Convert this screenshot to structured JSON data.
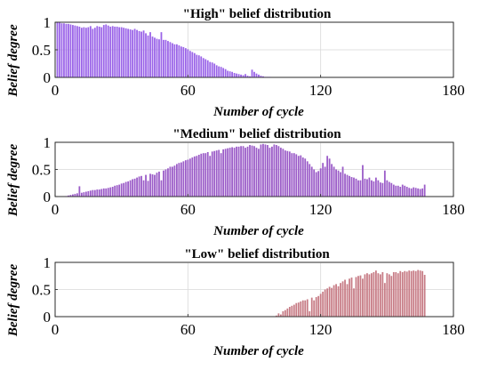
{
  "chart_data": [
    {
      "type": "bar",
      "title": "\"High\" belief distribution",
      "xlabel": "Number of cycle",
      "ylabel": "Belief degree",
      "xlim": [
        0,
        180
      ],
      "ylim": [
        0,
        1
      ],
      "xticks": [
        "0",
        "60",
        "120",
        "180"
      ],
      "yticks": [
        "0",
        "0.5",
        "1"
      ],
      "grid": true,
      "color": "#9a63e8",
      "x": [
        1,
        2,
        3,
        4,
        5,
        6,
        7,
        8,
        9,
        10,
        11,
        12,
        13,
        14,
        15,
        16,
        17,
        18,
        19,
        20,
        21,
        22,
        23,
        24,
        25,
        26,
        27,
        28,
        29,
        30,
        31,
        32,
        33,
        34,
        35,
        36,
        37,
        38,
        39,
        40,
        41,
        42,
        43,
        44,
        45,
        46,
        47,
        48,
        49,
        50,
        51,
        52,
        53,
        54,
        55,
        56,
        57,
        58,
        59,
        60,
        61,
        62,
        63,
        64,
        65,
        66,
        67,
        68,
        69,
        70,
        71,
        72,
        73,
        74,
        75,
        76,
        77,
        78,
        79,
        80,
        81,
        82,
        83,
        84,
        85,
        86,
        87,
        88,
        89,
        90,
        91,
        92,
        93,
        94,
        95,
        96,
        97,
        98,
        99,
        100,
        101,
        102,
        103
      ],
      "values": [
        1.0,
        1.0,
        0.98,
        0.98,
        0.97,
        0.97,
        0.96,
        0.95,
        0.94,
        0.93,
        0.92,
        0.9,
        0.91,
        0.9,
        0.91,
        0.93,
        0.88,
        0.9,
        0.93,
        0.92,
        0.91,
        0.95,
        0.96,
        0.94,
        0.92,
        0.93,
        0.92,
        0.92,
        0.91,
        0.91,
        0.9,
        0.89,
        0.88,
        0.87,
        0.86,
        0.88,
        0.86,
        0.84,
        0.83,
        0.85,
        0.8,
        0.76,
        0.82,
        0.74,
        0.72,
        0.7,
        0.69,
        0.82,
        0.68,
        0.68,
        0.66,
        0.64,
        0.62,
        0.6,
        0.6,
        0.58,
        0.56,
        0.55,
        0.53,
        0.51,
        0.48,
        0.46,
        0.44,
        0.41,
        0.4,
        0.38,
        0.35,
        0.33,
        0.31,
        0.28,
        0.27,
        0.25,
        0.22,
        0.2,
        0.19,
        0.17,
        0.15,
        0.12,
        0.11,
        0.1,
        0.08,
        0.07,
        0.06,
        0.05,
        0.04,
        0.06,
        0.03,
        0.02,
        0.14,
        0.1,
        0.07,
        0.05,
        0.03,
        0.02,
        0.01,
        0.01,
        0.01,
        0.0,
        0.0,
        0.0,
        0.0,
        0.0,
        0.0
      ]
    },
    {
      "type": "bar",
      "title": "\"Medium\" belief distribution",
      "xlabel": "Number of cycle",
      "ylabel": "Belief degree",
      "xlim": [
        0,
        180
      ],
      "ylim": [
        0,
        1
      ],
      "xticks": [
        "0",
        "60",
        "120",
        "180"
      ],
      "yticks": [
        "0",
        "0.5",
        "1"
      ],
      "grid": true,
      "color": "#9b5cc8",
      "x": [
        1,
        2,
        3,
        4,
        5,
        6,
        7,
        8,
        9,
        10,
        11,
        12,
        13,
        14,
        15,
        16,
        17,
        18,
        19,
        20,
        21,
        22,
        23,
        24,
        25,
        26,
        27,
        28,
        29,
        30,
        31,
        32,
        33,
        34,
        35,
        36,
        37,
        38,
        39,
        40,
        41,
        42,
        43,
        44,
        45,
        46,
        47,
        48,
        49,
        50,
        51,
        52,
        53,
        54,
        55,
        56,
        57,
        58,
        59,
        60,
        61,
        62,
        63,
        64,
        65,
        66,
        67,
        68,
        69,
        70,
        71,
        72,
        73,
        74,
        75,
        76,
        77,
        78,
        79,
        80,
        81,
        82,
        83,
        84,
        85,
        86,
        87,
        88,
        89,
        90,
        91,
        92,
        93,
        94,
        95,
        96,
        97,
        98,
        99,
        100,
        101,
        102,
        103,
        104,
        105,
        106,
        107,
        108,
        109,
        110,
        111,
        112,
        113,
        114,
        115,
        116,
        117,
        118,
        119,
        120,
        121,
        122,
        123,
        124,
        125,
        126,
        127,
        128,
        129,
        130,
        131,
        132,
        133,
        134,
        135,
        136,
        137,
        138,
        139,
        140,
        141,
        142,
        143,
        144,
        145,
        146,
        147,
        148,
        149,
        150,
        151,
        152,
        153,
        154,
        155,
        156,
        157,
        158,
        159,
        160,
        161,
        162,
        163,
        164,
        165,
        166,
        167
      ],
      "values": [
        0.0,
        0.0,
        0.0,
        0.0,
        0.01,
        0.02,
        0.03,
        0.04,
        0.05,
        0.06,
        0.19,
        0.07,
        0.08,
        0.09,
        0.1,
        0.11,
        0.12,
        0.12,
        0.13,
        0.13,
        0.14,
        0.15,
        0.15,
        0.16,
        0.17,
        0.18,
        0.2,
        0.21,
        0.22,
        0.24,
        0.25,
        0.27,
        0.28,
        0.3,
        0.32,
        0.33,
        0.35,
        0.37,
        0.38,
        0.3,
        0.4,
        0.29,
        0.42,
        0.41,
        0.4,
        0.44,
        0.46,
        0.3,
        0.48,
        0.5,
        0.52,
        0.55,
        0.55,
        0.57,
        0.6,
        0.62,
        0.63,
        0.65,
        0.67,
        0.68,
        0.7,
        0.72,
        0.74,
        0.75,
        0.77,
        0.79,
        0.8,
        0.8,
        0.82,
        0.75,
        0.83,
        0.84,
        0.85,
        0.86,
        0.8,
        0.87,
        0.88,
        0.89,
        0.9,
        0.91,
        0.9,
        0.92,
        0.92,
        0.93,
        0.93,
        0.9,
        0.92,
        0.95,
        0.94,
        0.93,
        0.9,
        0.88,
        0.96,
        0.97,
        0.96,
        0.95,
        0.9,
        0.92,
        0.96,
        0.95,
        0.93,
        0.9,
        0.88,
        0.85,
        0.84,
        0.83,
        0.8,
        0.8,
        0.78,
        0.75,
        0.76,
        0.72,
        0.7,
        0.65,
        0.6,
        0.55,
        0.5,
        0.45,
        0.47,
        0.52,
        0.62,
        0.55,
        0.75,
        0.7,
        0.6,
        0.55,
        0.5,
        0.48,
        0.45,
        0.55,
        0.42,
        0.4,
        0.38,
        0.36,
        0.35,
        0.33,
        0.3,
        0.3,
        0.58,
        0.33,
        0.32,
        0.35,
        0.3,
        0.28,
        0.35,
        0.3,
        0.26,
        0.25,
        0.48,
        0.3,
        0.27,
        0.25,
        0.22,
        0.2,
        0.2,
        0.18,
        0.22,
        0.2,
        0.18,
        0.16,
        0.15,
        0.17,
        0.16,
        0.15,
        0.14,
        0.15,
        0.22
      ]
    },
    {
      "type": "bar",
      "title": "\"Low\" belief distribution",
      "xlabel": "Number of cycle",
      "ylabel": "Belief degree",
      "xlim": [
        0,
        180
      ],
      "ylim": [
        0,
        1
      ],
      "xticks": [
        "0",
        "60",
        "120",
        "180"
      ],
      "yticks": [
        "0",
        "0.5",
        "1"
      ],
      "grid": true,
      "color": "#c77c86",
      "x": [
        98,
        99,
        100,
        101,
        102,
        103,
        104,
        105,
        106,
        107,
        108,
        109,
        110,
        111,
        112,
        113,
        114,
        115,
        116,
        117,
        118,
        119,
        120,
        121,
        122,
        123,
        124,
        125,
        126,
        127,
        128,
        129,
        130,
        131,
        132,
        133,
        134,
        135,
        136,
        137,
        138,
        139,
        140,
        141,
        142,
        143,
        144,
        145,
        146,
        147,
        148,
        149,
        150,
        151,
        152,
        153,
        154,
        155,
        156,
        157,
        158,
        159,
        160,
        161,
        162,
        163,
        164,
        165,
        166,
        167
      ],
      "values": [
        0.0,
        0.0,
        0.02,
        0.06,
        0.04,
        0.1,
        0.12,
        0.15,
        0.18,
        0.2,
        0.22,
        0.25,
        0.26,
        0.28,
        0.3,
        0.3,
        0.32,
        0.1,
        0.35,
        0.3,
        0.36,
        0.38,
        0.42,
        0.46,
        0.5,
        0.52,
        0.55,
        0.53,
        0.58,
        0.6,
        0.56,
        0.62,
        0.65,
        0.68,
        0.6,
        0.7,
        0.72,
        0.52,
        0.73,
        0.75,
        0.76,
        0.7,
        0.78,
        0.8,
        0.78,
        0.8,
        0.82,
        0.85,
        0.8,
        0.78,
        0.82,
        0.62,
        0.8,
        0.78,
        0.75,
        0.82,
        0.82,
        0.8,
        0.84,
        0.82,
        0.84,
        0.83,
        0.85,
        0.84,
        0.85,
        0.84,
        0.86,
        0.85,
        0.84,
        0.77
      ]
    }
  ]
}
